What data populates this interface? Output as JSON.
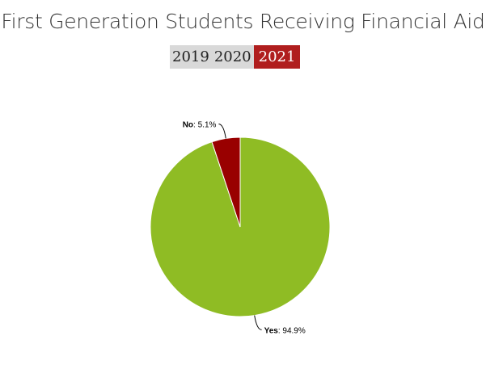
{
  "page": {
    "title": "First Generation Students Receiving Financial Aid"
  },
  "year_tabs": [
    {
      "label": "2019",
      "active": false
    },
    {
      "label": "2020",
      "active": false
    },
    {
      "label": "2021",
      "active": true
    }
  ],
  "colors": {
    "active_tab": "#b01e1e",
    "tab_bg": "#d9d9d9",
    "yes": "#8fbc24",
    "no": "#990000"
  },
  "chart_data": {
    "type": "pie",
    "title": "First Generation Students Receiving Financial Aid",
    "slices": [
      {
        "name": "Yes",
        "value": 94.9,
        "label_value": "94.9%",
        "color": "#8fbc24"
      },
      {
        "name": "No",
        "value": 5.1,
        "label_value": "5.1%",
        "color": "#990000"
      }
    ]
  }
}
